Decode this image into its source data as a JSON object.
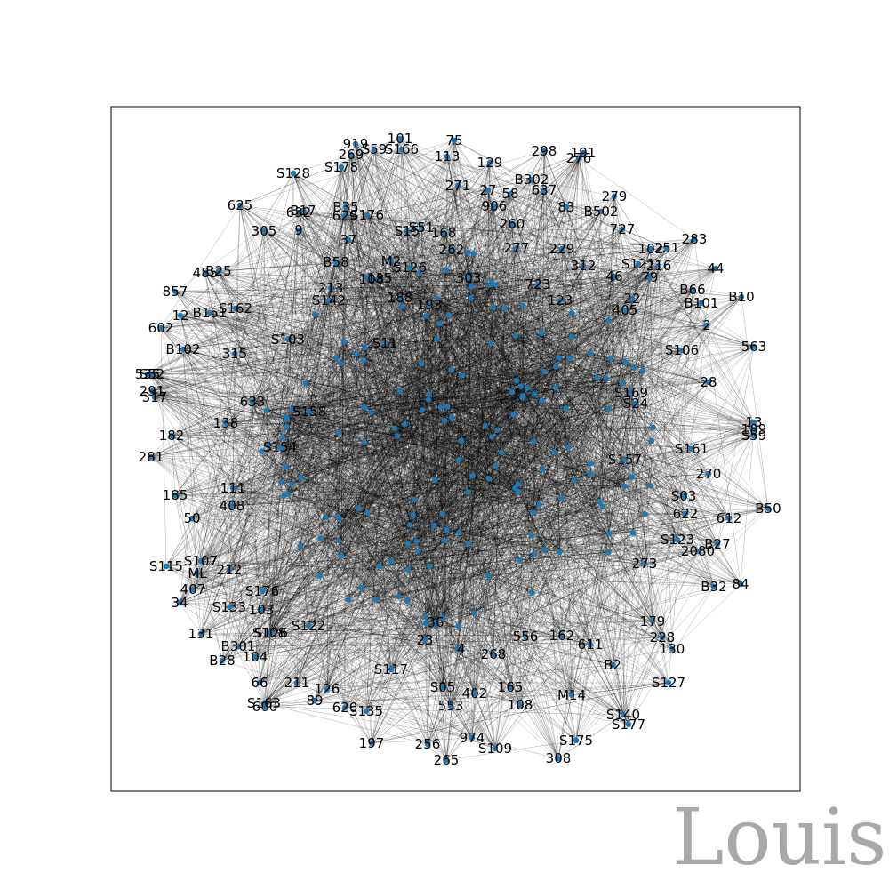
{
  "graph": {
    "node_color": "#1f77b4",
    "edge_color": "#000000",
    "frame_color": "#000000",
    "nodes": [
      "919",
      "101",
      "75",
      "298",
      "191",
      "276",
      "269",
      "S59",
      "S166",
      "113",
      "129",
      "B302",
      "637",
      "S128",
      "S178",
      "271",
      "27",
      "58",
      "906",
      "279",
      "625",
      "632",
      "B17",
      "B35",
      "629",
      "S176",
      "83",
      "B502",
      "727",
      "305",
      "9",
      "37",
      "S15",
      "S51",
      "168",
      "260",
      "277",
      "229",
      "102",
      "251",
      "283",
      "485",
      "B25",
      "B58",
      "M2",
      "S126",
      "262",
      "S121",
      "216",
      "44",
      "857",
      "213",
      "108",
      "135",
      "S142",
      "303",
      "723",
      "312",
      "46",
      "B66",
      "B10",
      "12",
      "B151",
      "S162",
      "188",
      "193",
      "123",
      "79",
      "B101",
      "602",
      "22",
      "315",
      "S103",
      "405",
      "B102",
      "S11",
      "S106",
      "563",
      "535",
      "S52",
      "2",
      "291",
      "317",
      "28",
      "633",
      "S158",
      "S169",
      "S24",
      "13",
      "189",
      "182",
      "S59b",
      "S161",
      "138",
      "S154",
      "281",
      "S157",
      "270",
      "111",
      "S03",
      "185",
      "408",
      "622",
      "612",
      "B50",
      "50",
      "S107",
      "S123",
      "S115",
      "B27",
      "ML",
      "212",
      "2080",
      "273",
      "407",
      "S176b",
      "B32",
      "84",
      "34",
      "S133",
      "103",
      "131",
      "B301",
      "S108",
      "S122",
      "179",
      "228",
      "B28",
      "104",
      "S126b",
      "130",
      "S117",
      "S127",
      "B2",
      "211",
      "126",
      "M14",
      "66",
      "S163",
      "600",
      "89",
      "620",
      "S135",
      "S140",
      "S177",
      "197",
      "256",
      "265",
      "402",
      "553",
      "974",
      "S109",
      "S175",
      "308",
      "268",
      "556",
      "162",
      "611",
      "165",
      "108b",
      "S05",
      "14",
      "36",
      "23"
    ],
    "edges_note": ""
  },
  "watermark": {
    "text": "Louis",
    "color": "#a8a8a8"
  }
}
